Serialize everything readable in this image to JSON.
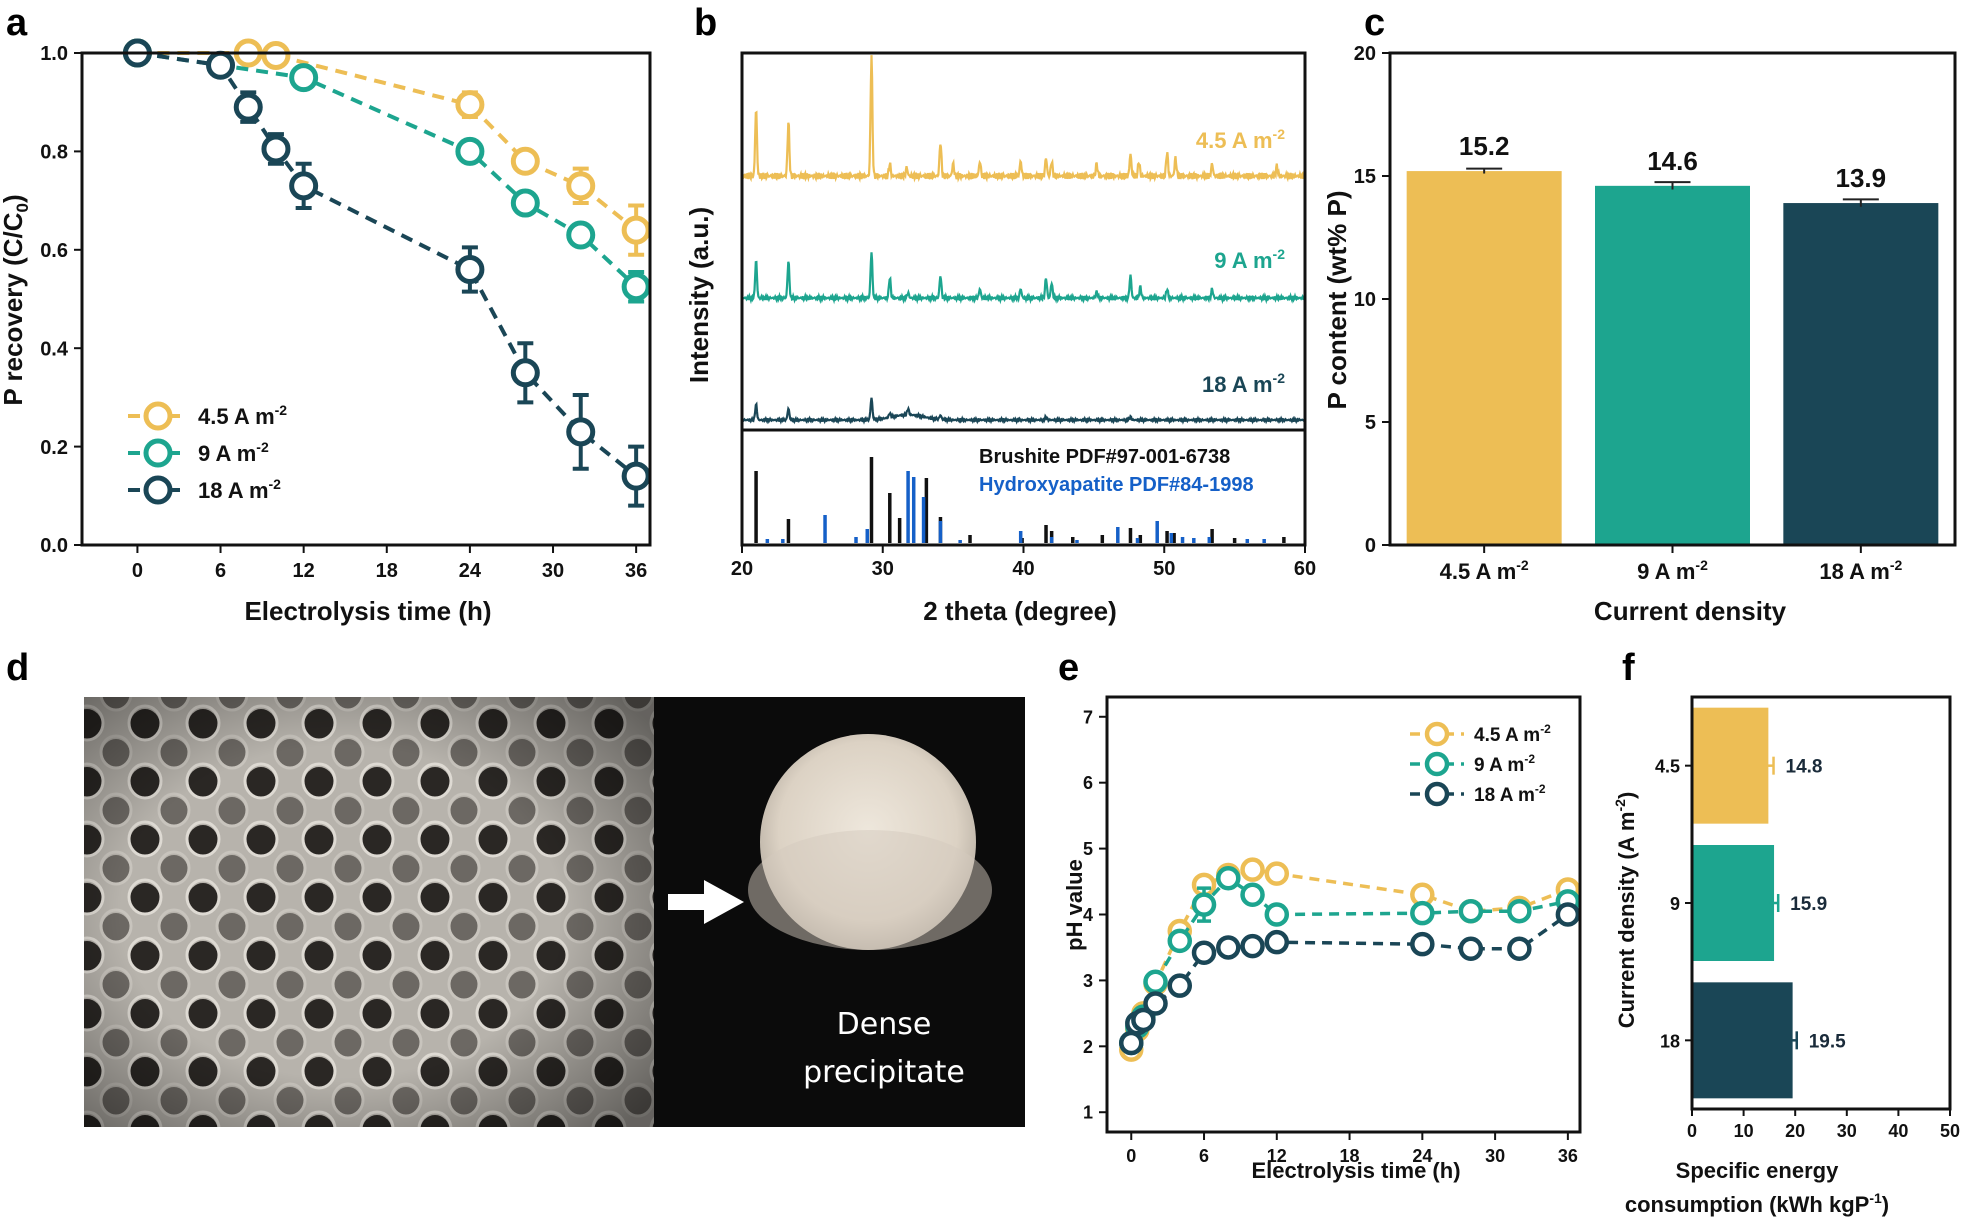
{
  "colors": {
    "c1": "#EDBE55",
    "c2": "#1DA58F",
    "c3": "#1A4656",
    "blue": "#1560C8",
    "black": "#111111"
  },
  "panel_letters": [
    "a",
    "b",
    "c",
    "d",
    "e",
    "f"
  ],
  "chart_data": [
    {
      "panel": "a",
      "type": "line",
      "xlabel": "Electrolysis time (h)",
      "ylabel": "P recovery (C/C",
      "ylabel_sub": "0",
      "ylabel_close": ")",
      "xlim": [
        -4,
        37
      ],
      "ylim": [
        0,
        1
      ],
      "xticks": [
        "0",
        "6",
        "12",
        "18",
        "24",
        "30",
        "36"
      ],
      "yticks": [
        "0.0",
        "0.2",
        "0.4",
        "0.6",
        "0.8",
        "1.0"
      ],
      "legend_position": "bottom-left",
      "series": [
        {
          "name": "4.5 A m",
          "sup": "-2",
          "color_key": "c1",
          "x": [
            0,
            8,
            10,
            24,
            28,
            32,
            36
          ],
          "y": [
            1.0,
            1.0,
            0.995,
            0.895,
            0.78,
            0.73,
            0.64
          ],
          "err": [
            0.0,
            0.0,
            0.0,
            0.025,
            0.015,
            0.035,
            0.05
          ]
        },
        {
          "name": " 9 A m",
          "sup": "-2",
          "color_key": "c2",
          "x": [
            0,
            12,
            24,
            28,
            32,
            36
          ],
          "y": [
            1.0,
            0.95,
            0.8,
            0.695,
            0.63,
            0.525
          ],
          "err": [
            0.0,
            0.02,
            0.02,
            0.015,
            0.015,
            0.03
          ]
        },
        {
          "name": "18 A m",
          "sup": "-2",
          "color_key": "c3",
          "x": [
            0,
            6,
            8,
            10,
            12,
            24,
            28,
            32,
            36
          ],
          "y": [
            1.0,
            0.975,
            0.89,
            0.805,
            0.73,
            0.56,
            0.35,
            0.23,
            0.14
          ],
          "err": [
            0.0,
            0.01,
            0.03,
            0.03,
            0.045,
            0.045,
            0.06,
            0.075,
            0.06
          ]
        }
      ]
    },
    {
      "panel": "b",
      "type": "line",
      "xlabel": "2 theta (degree)",
      "ylabel": "Intensity (a.u.)",
      "xlim": [
        20,
        60
      ],
      "xticks": [
        "20",
        "30",
        "40",
        "50",
        "60"
      ],
      "traces": [
        {
          "label": "4.5 A m",
          "sup": "-2",
          "color_key": "c1",
          "peaks": [
            [
              21,
              0.55
            ],
            [
              23.3,
              0.45
            ],
            [
              29.2,
              1.0
            ],
            [
              30.5,
              0.1
            ],
            [
              31.7,
              0.07
            ],
            [
              34.1,
              0.28
            ],
            [
              35.0,
              0.1
            ],
            [
              36.9,
              0.12
            ],
            [
              39.8,
              0.12
            ],
            [
              41.6,
              0.15
            ],
            [
              42.0,
              0.12
            ],
            [
              45.2,
              0.1
            ],
            [
              47.6,
              0.18
            ],
            [
              48.2,
              0.12
            ],
            [
              50.2,
              0.2
            ],
            [
              50.8,
              0.15
            ],
            [
              53.4,
              0.1
            ],
            [
              58.0,
              0.08
            ]
          ]
        },
        {
          "label": "9 A m",
          "sup": "-2",
          "color_key": "c2",
          "peaks": [
            [
              21,
              0.5
            ],
            [
              23.3,
              0.5
            ],
            [
              29.2,
              0.62
            ],
            [
              30.5,
              0.27
            ],
            [
              31.8,
              0.07
            ],
            [
              34.1,
              0.3
            ],
            [
              36.9,
              0.12
            ],
            [
              39.8,
              0.12
            ],
            [
              41.6,
              0.27
            ],
            [
              42.0,
              0.2
            ],
            [
              45.2,
              0.08
            ],
            [
              47.6,
              0.3
            ],
            [
              48.3,
              0.15
            ],
            [
              50.2,
              0.12
            ],
            [
              53.4,
              0.12
            ]
          ]
        },
        {
          "label": "18 A m",
          "sup": "-2",
          "color_key": "c3",
          "peaks": [
            [
              21,
              0.3
            ],
            [
              23.3,
              0.22
            ],
            [
              29.2,
              0.42
            ],
            [
              30.5,
              0.08
            ],
            [
              31.8,
              0.12
            ],
            [
              34.1,
              0.08
            ],
            [
              41.6,
              0.06
            ],
            [
              47.6,
              0.06
            ]
          ]
        }
      ],
      "references": [
        {
          "label": "Brushite PDF#97-001-6738",
          "color_key": "black",
          "x": [
            21.0,
            23.3,
            29.2,
            30.5,
            31.2,
            33.1,
            34.1,
            36.2,
            39.9,
            41.6,
            42.0,
            43.5,
            45.6,
            47.6,
            48.3,
            50.2,
            50.7,
            53.4,
            55.0,
            58.5
          ],
          "h": [
            0.72,
            0.24,
            0.86,
            0.5,
            0.25,
            0.65,
            0.26,
            0.08,
            0.05,
            0.18,
            0.12,
            0.06,
            0.08,
            0.15,
            0.08,
            0.12,
            0.1,
            0.14,
            0.05,
            0.06
          ]
        },
        {
          "label": "Hydroxyapatite PDF#84-1998",
          "color_key": "blue",
          "x": [
            21.8,
            22.9,
            25.9,
            28.1,
            28.9,
            31.8,
            32.2,
            32.9,
            34.1,
            35.5,
            39.8,
            42.0,
            43.8,
            46.7,
            48.1,
            49.5,
            50.5,
            51.3,
            52.1,
            53.2,
            55.9,
            57.1
          ],
          "h": [
            0.04,
            0.04,
            0.28,
            0.06,
            0.14,
            0.72,
            0.66,
            0.46,
            0.22,
            0.03,
            0.12,
            0.06,
            0.03,
            0.16,
            0.05,
            0.22,
            0.1,
            0.06,
            0.05,
            0.06,
            0.04,
            0.04
          ]
        }
      ]
    },
    {
      "panel": "c",
      "type": "bar",
      "xlabel": "Current density",
      "ylabel": "P content (wt% P)",
      "ylim": [
        0,
        20
      ],
      "yticks": [
        "0",
        "5",
        "10",
        "15",
        "20"
      ],
      "categories": [
        "4.5 A m",
        "9 A m",
        "18 A m"
      ],
      "category_sup": "-2",
      "values": [
        15.2,
        14.6,
        13.9
      ],
      "err": [
        0.1,
        0.15,
        0.15
      ],
      "value_labels": [
        "15.2",
        "14.6",
        "13.9"
      ],
      "color_keys": [
        "c1",
        "c2",
        "c3"
      ]
    },
    {
      "panel": "e",
      "type": "line",
      "xlabel": "Electrolysis time (h)",
      "ylabel": "pH value",
      "xlim": [
        -2,
        37
      ],
      "ylim": [
        0.7,
        7.3
      ],
      "xticks": [
        "0",
        "6",
        "12",
        "18",
        "24",
        "30",
        "36"
      ],
      "yticks": [
        "1",
        "2",
        "3",
        "4",
        "5",
        "6",
        "7"
      ],
      "legend_position": "top-right",
      "series": [
        {
          "name": "4.5 A m",
          "sup": "-2",
          "color_key": "c1",
          "x": [
            0,
            0.5,
            1,
            2,
            4,
            6,
            8,
            10,
            12,
            24,
            28,
            32,
            36
          ],
          "y": [
            1.95,
            2.25,
            2.5,
            2.95,
            3.75,
            4.45,
            4.6,
            4.68,
            4.62,
            4.3,
            4.05,
            4.1,
            4.38
          ],
          "err": [
            0.05,
            0.05,
            0.05,
            0.05,
            0.1,
            0.08,
            0.08,
            0.05,
            0.05,
            0.08,
            0.05,
            0.05,
            0.08
          ]
        },
        {
          "name": " 9 A m",
          "sup": "-2",
          "color_key": "c2",
          "x": [
            0,
            0.5,
            1,
            2,
            4,
            6,
            8,
            10,
            12,
            24,
            28,
            32,
            36
          ],
          "y": [
            2.05,
            2.3,
            2.45,
            2.98,
            3.6,
            4.15,
            4.55,
            4.3,
            4.0,
            4.02,
            4.05,
            4.05,
            4.2
          ],
          "err": [
            0.05,
            0.05,
            0.05,
            0.08,
            0.1,
            0.25,
            0.1,
            0.08,
            0.05,
            0.05,
            0.05,
            0.05,
            0.05
          ]
        },
        {
          "name": "18 A m",
          "sup": "-2",
          "color_key": "c3",
          "x": [
            0,
            0.5,
            1,
            2,
            4,
            6,
            8,
            10,
            12,
            24,
            28,
            32,
            36
          ],
          "y": [
            2.05,
            2.35,
            2.4,
            2.65,
            2.92,
            3.42,
            3.5,
            3.52,
            3.58,
            3.55,
            3.48,
            3.48,
            4.0
          ],
          "err": [
            0.05,
            0.05,
            0.05,
            0.05,
            0.05,
            0.05,
            0.05,
            0.05,
            0.05,
            0.05,
            0.05,
            0.05,
            0.05
          ]
        }
      ]
    },
    {
      "panel": "f",
      "type": "bar",
      "orientation": "horizontal",
      "xlabel_line1": "Specific energy",
      "xlabel_line2": "consumption (kWh kgP",
      "xlabel_sup": "-1",
      "xlabel_close": ")",
      "ylabel": "Current density (A m",
      "ylabel_sup": "-2",
      "ylabel_close": ")",
      "xlim": [
        0,
        50
      ],
      "xticks": [
        "0",
        "10",
        "20",
        "30",
        "40",
        "50"
      ],
      "categories": [
        "4.5",
        "9",
        "18"
      ],
      "values": [
        14.8,
        15.9,
        19.5
      ],
      "err": [
        1.0,
        0.8,
        0.8
      ],
      "value_labels": [
        "14.8",
        "15.9",
        "19.5"
      ],
      "color_keys": [
        "c1",
        "c2",
        "c3"
      ]
    }
  ],
  "photo_d": {
    "caption_line1": "Dense",
    "caption_line2": "precipitate"
  }
}
